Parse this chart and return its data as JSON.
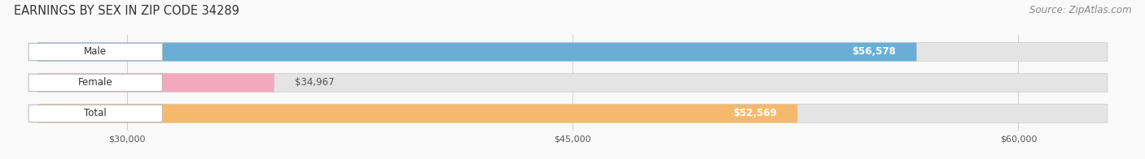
{
  "title": "EARNINGS BY SEX IN ZIP CODE 34289",
  "source": "Source: ZipAtlas.com",
  "categories": [
    "Male",
    "Female",
    "Total"
  ],
  "values": [
    56578,
    34967,
    52569
  ],
  "bar_colors": [
    "#6aaed6",
    "#f4a8c0",
    "#f5b96e"
  ],
  "bar_bg_color": "#e4e4e4",
  "label_colors": [
    "white",
    "#555555",
    "white"
  ],
  "xmin": 27000,
  "xmax": 63000,
  "xticks": [
    30000,
    45000,
    60000
  ],
  "xtick_labels": [
    "$30,000",
    "$45,000",
    "$60,000"
  ],
  "title_fontsize": 10.5,
  "source_fontsize": 8.5,
  "bar_label_fontsize": 8.5,
  "category_fontsize": 8.5,
  "background_color": "#f9f9f9"
}
